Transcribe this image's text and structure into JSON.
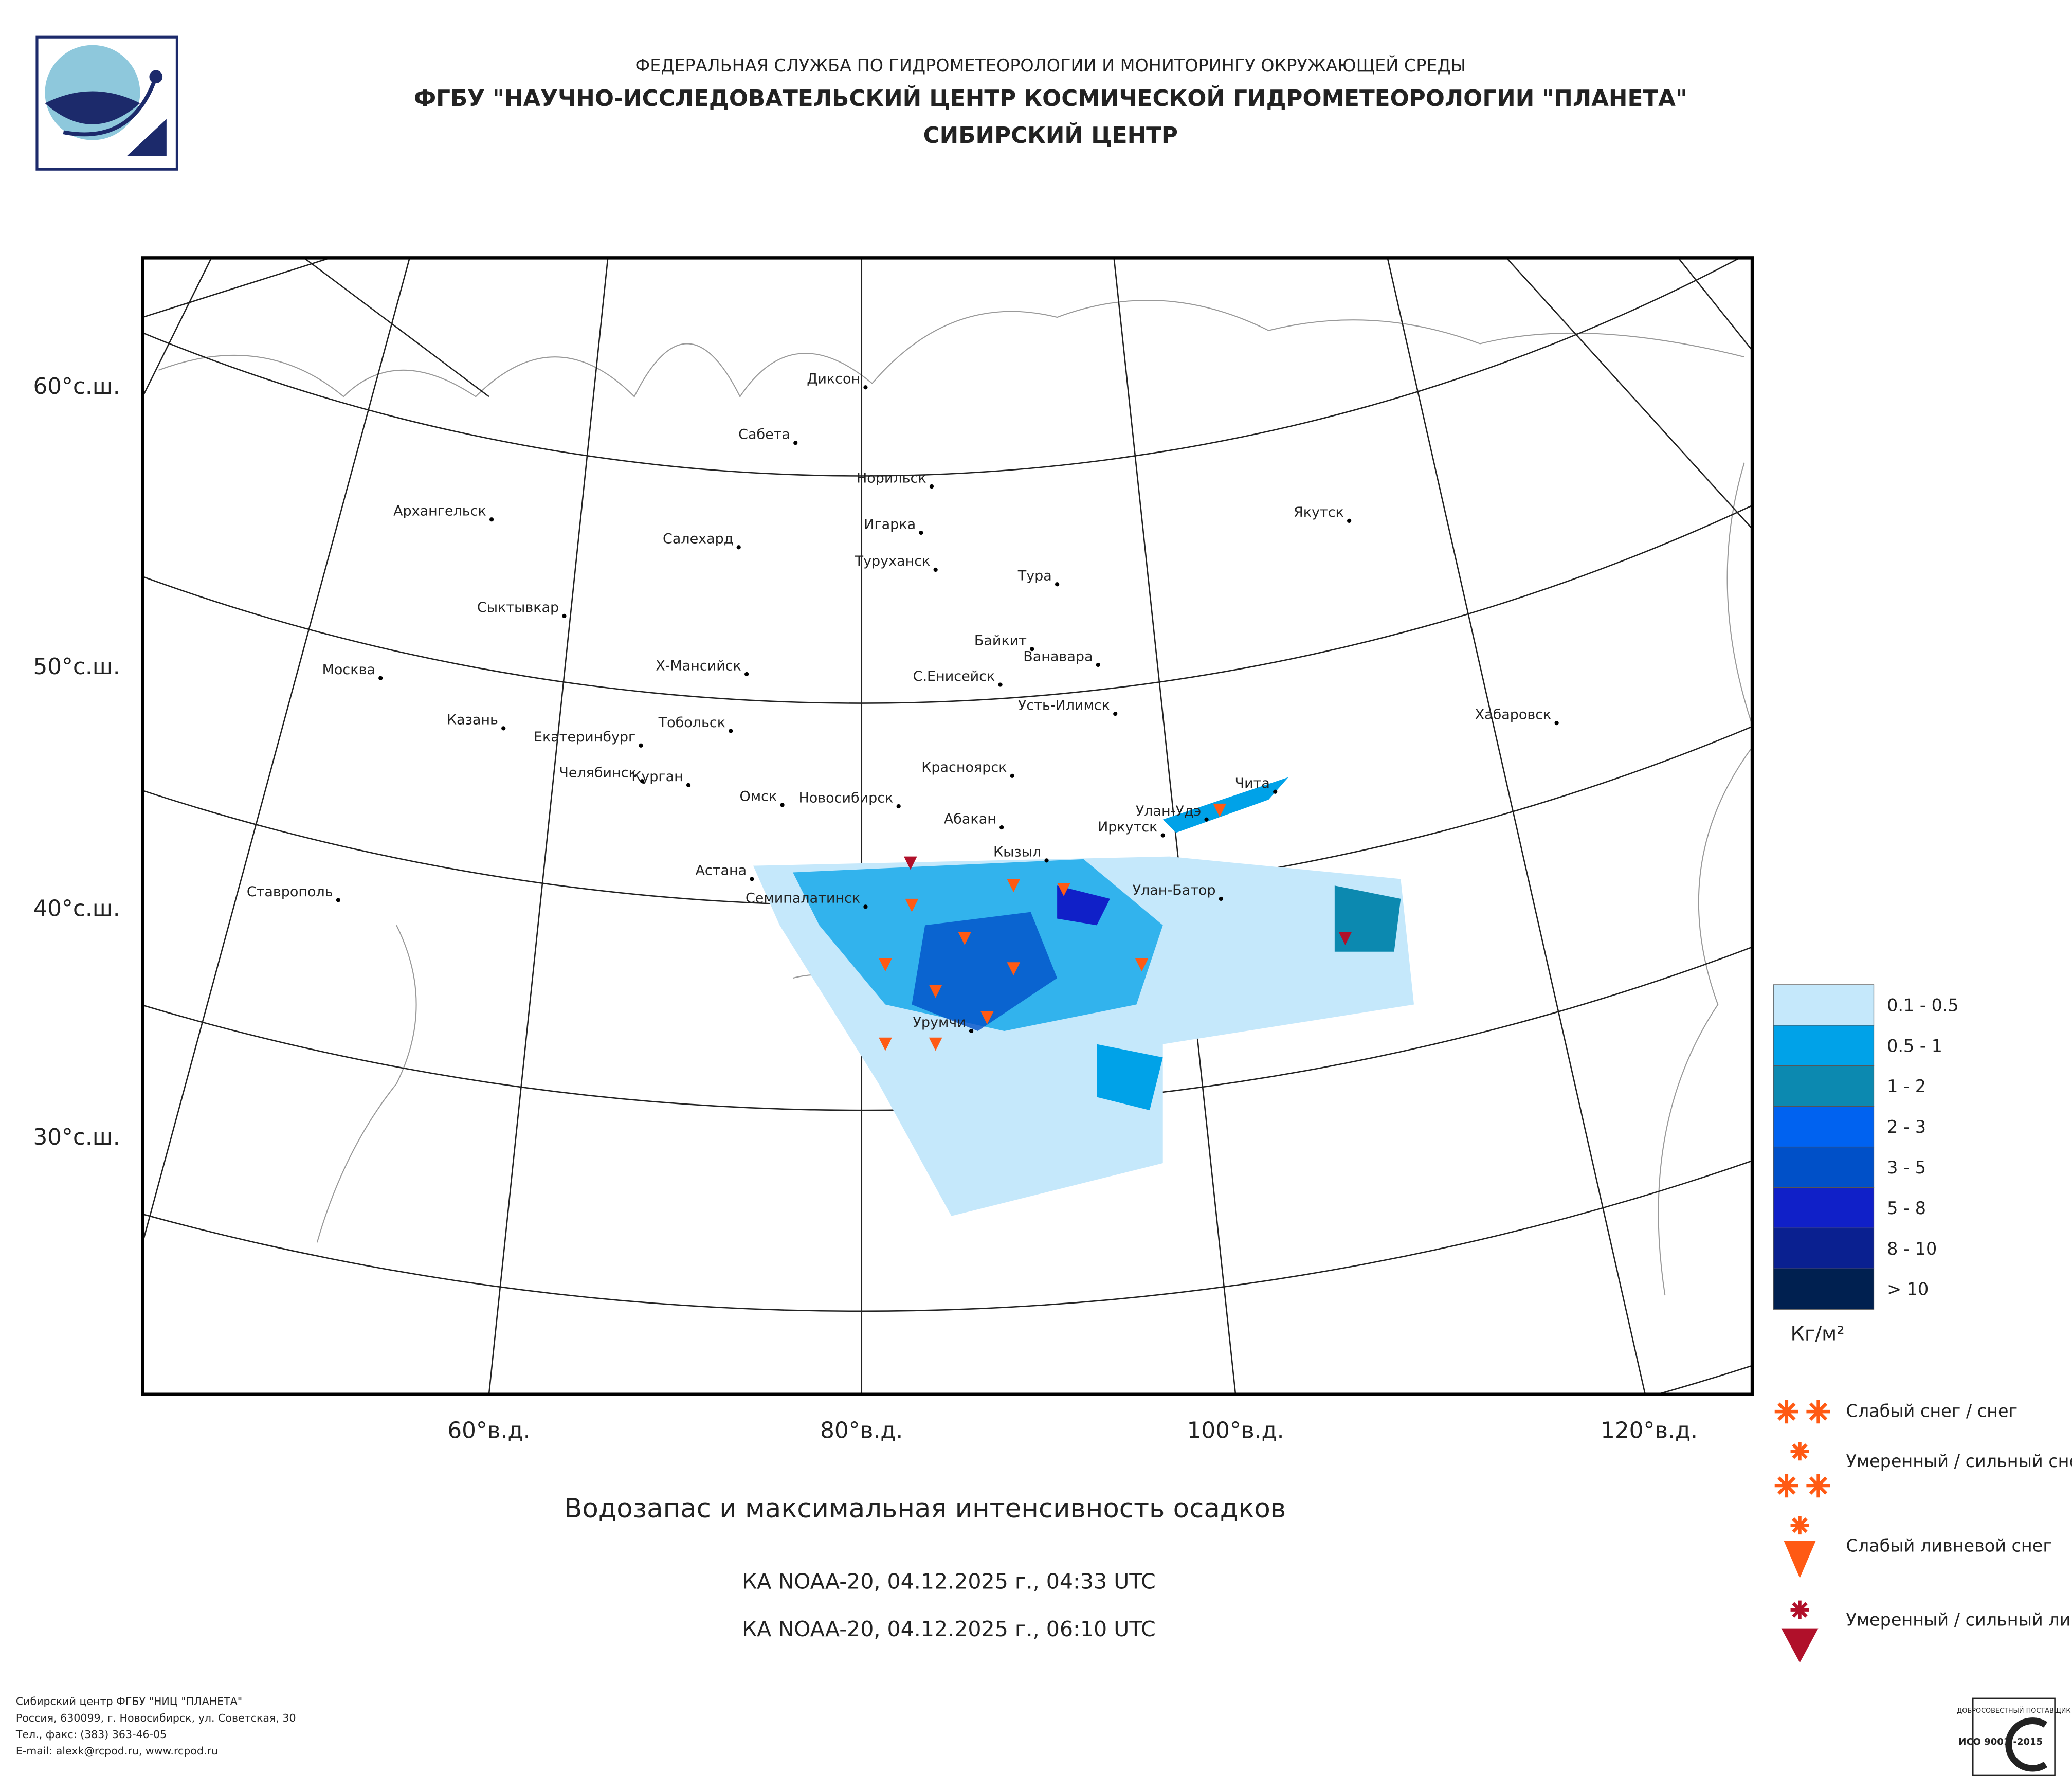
{
  "header": {
    "agency": "ФЕДЕРАЛЬНАЯ СЛУЖБА ПО ГИДРОМЕТЕОРОЛОГИИ И МОНИТОРИНГУ ОКРУЖАЮЩЕЙ СРЕДЫ",
    "institute": "ФГБУ \"НАУЧНО-ИССЛЕДОВАТЕЛЬСКИЙ ЦЕНТР КОСМИЧЕСКОЙ ГИДРОМЕТЕОРОЛОГИИ \"ПЛАНЕТА\"",
    "center": "СИБИРСКИЙ ЦЕНТР"
  },
  "map": {
    "lat_labels": [
      "60°с.ш.",
      "50°с.ш.",
      "40°с.ш.",
      "30°с.ш."
    ],
    "lon_labels": [
      "60°в.д.",
      "80°в.д.",
      "100°в.д.",
      "120°в.д."
    ],
    "cities": [
      "Диксон",
      "Сабета",
      "Норильск",
      "Игарка",
      "Салехард",
      "Туруханск",
      "Архангельск",
      "Якутск",
      "Тура",
      "Сыктывкар",
      "Байкит",
      "Ванавара",
      "Х-Мансийск",
      "С.Енисейск",
      "Москва",
      "Усть-Илимск",
      "Хабаровск",
      "Казань",
      "Тобольск",
      "Екатеринбург",
      "Красноярск",
      "Челябинск",
      "Курган",
      "Чита",
      "Омск",
      "Новосибирск",
      "Абакан",
      "Улан-Удэ",
      "Иркутск",
      "Кызыл",
      "Астана",
      "Улан-Батор",
      "Семипалатинск",
      "Ставрополь",
      "Урумчи"
    ]
  },
  "legend": {
    "classes": [
      "0.1 - 0.5",
      "0.5 - 1",
      "1 - 2",
      "2 - 3",
      "3 - 5",
      "5 - 8",
      "8 - 10",
      "> 10"
    ],
    "unit": "Кг/м²"
  },
  "symbols": [
    "Слабый снег / снег",
    "Умеренный / сильный снег",
    "Слабый ливневой снег",
    "Умеренный / сильный ливневой снег"
  ],
  "title": "Водозапас и максимальная интенсивность осадков",
  "passes": [
    "КА NOAA-20, 04.12.2025 г., 04:33 UTC",
    "КА NOAA-20, 04.12.2025 г., 06:10 UTC"
  ],
  "footer": [
    "Сибирский центр ФГБУ \"НИЦ \"ПЛАНЕТА\"",
    "Россия, 630099, г. Новосибирск, ул. Советская, 30",
    "Тел., факс: (383) 363-46-05",
    "E-mail: alexk@rcpod.ru, www.rcpod.ru"
  ],
  "badge": [
    "ДОБРОСОВЕСТНЫЙ ПОСТАВЩИК",
    "ИСО 9001 -2015"
  ]
}
